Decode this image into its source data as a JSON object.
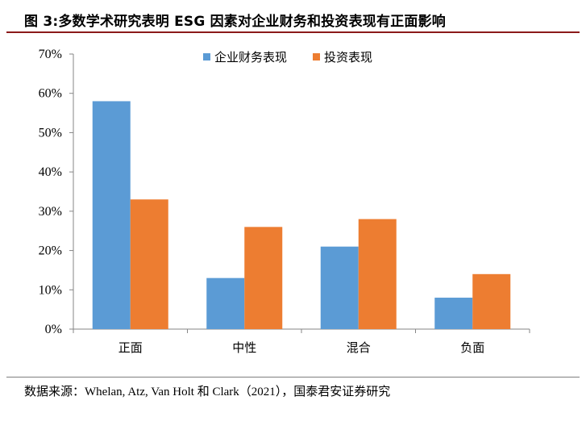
{
  "header": {
    "title": "图  3:多数学术研究表明 ESG 因素对企业财务和投资表现有正面影响"
  },
  "source": {
    "text": "数据来源：Whelan, Atz, Van Holt 和 Clark（2021），国泰君安证券研究"
  },
  "chart_data": {
    "type": "bar",
    "categories": [
      "正面",
      "中性",
      "混合",
      "负面"
    ],
    "series": [
      {
        "name": "企业财务表现",
        "values": [
          58,
          13,
          21,
          8
        ],
        "color": "#5b9bd5"
      },
      {
        "name": "投资表现",
        "values": [
          33,
          26,
          28,
          14
        ],
        "color": "#ed7d31"
      }
    ],
    "ylim": [
      0,
      70
    ],
    "yticks": [
      "0%",
      "10%",
      "20%",
      "30%",
      "40%",
      "50%",
      "60%",
      "70%"
    ],
    "unit": "%",
    "grid": false,
    "legend_position": "top-center"
  }
}
